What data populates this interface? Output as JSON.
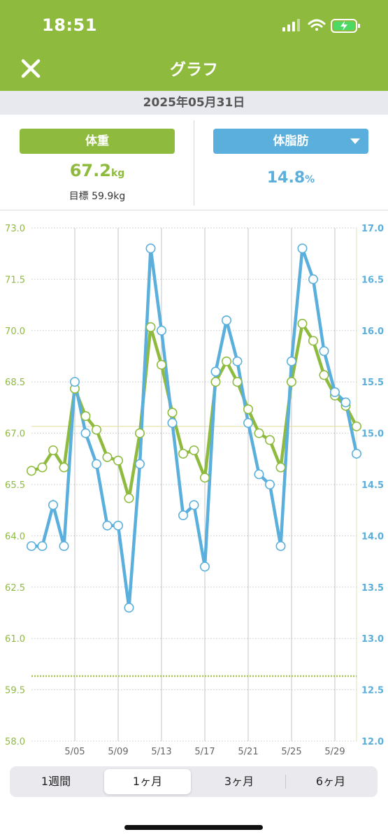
{
  "status": {
    "time": "18:51"
  },
  "header": {
    "title": "グラフ",
    "close_icon": "close-icon"
  },
  "date_label": "2025年05月31日",
  "weight": {
    "button_label": "体重",
    "value": "67.2",
    "unit": "kg",
    "goal_text": "目標 59.9kg",
    "color": "#8ebb3d"
  },
  "body_fat": {
    "button_label": "体脂肪",
    "value": "14.8",
    "unit": "%",
    "color": "#5aafdc"
  },
  "tabs": [
    {
      "label": "1週間",
      "active": false
    },
    {
      "label": "1ヶ月",
      "active": true
    },
    {
      "label": "3ヶ月",
      "active": false
    },
    {
      "label": "6ヶ月",
      "active": false
    }
  ],
  "chart_data": {
    "type": "line",
    "x": [
      "5/01",
      "5/02",
      "5/03",
      "5/04",
      "5/05",
      "5/06",
      "5/07",
      "5/08",
      "5/09",
      "5/10",
      "5/11",
      "5/12",
      "5/13",
      "5/14",
      "5/15",
      "5/16",
      "5/17",
      "5/18",
      "5/19",
      "5/20",
      "5/21",
      "5/22",
      "5/23",
      "5/24",
      "5/25",
      "5/26",
      "5/27",
      "5/28",
      "5/29",
      "5/30",
      "5/31"
    ],
    "x_tick_labels": [
      "5/05",
      "5/09",
      "5/13",
      "5/17",
      "5/21",
      "5/25",
      "5/29"
    ],
    "series": [
      {
        "name": "体重",
        "axis": "left",
        "color": "#8ebb3d",
        "values": [
          65.9,
          66.0,
          66.5,
          66.0,
          68.3,
          67.5,
          67.1,
          66.3,
          66.2,
          65.1,
          67.0,
          70.1,
          69.0,
          67.6,
          66.4,
          66.5,
          65.7,
          68.5,
          69.1,
          68.5,
          67.7,
          67.0,
          66.8,
          66.0,
          68.5,
          70.2,
          69.7,
          68.7,
          68.1,
          67.8,
          67.2
        ]
      },
      {
        "name": "体脂肪",
        "axis": "right",
        "color": "#5aafdc",
        "values": [
          13.9,
          13.9,
          14.3,
          13.9,
          15.5,
          15.0,
          14.7,
          14.1,
          14.1,
          13.3,
          14.7,
          16.8,
          16.0,
          15.1,
          14.2,
          14.3,
          13.7,
          15.6,
          16.1,
          15.7,
          15.1,
          14.6,
          14.5,
          13.9,
          15.7,
          16.8,
          16.5,
          15.8,
          15.4,
          15.3,
          14.8
        ]
      }
    ],
    "y_left": {
      "range": [
        58.0,
        73.0
      ],
      "ticks": [
        "73.0",
        "71.5",
        "70.0",
        "68.5",
        "67.0",
        "65.5",
        "64.0",
        "62.5",
        "61.0",
        "59.5",
        "58.0"
      ],
      "color": "#8ebb3d"
    },
    "y_right": {
      "range": [
        12.0,
        17.0
      ],
      "ticks": [
        "17.0",
        "16.5",
        "16.0",
        "15.5",
        "15.0",
        "14.5",
        "14.0",
        "13.5",
        "13.0",
        "12.5",
        "12.0"
      ],
      "color": "#5aafdc"
    },
    "goal_line": 59.9,
    "reference_line": 67.2,
    "grid": true
  }
}
